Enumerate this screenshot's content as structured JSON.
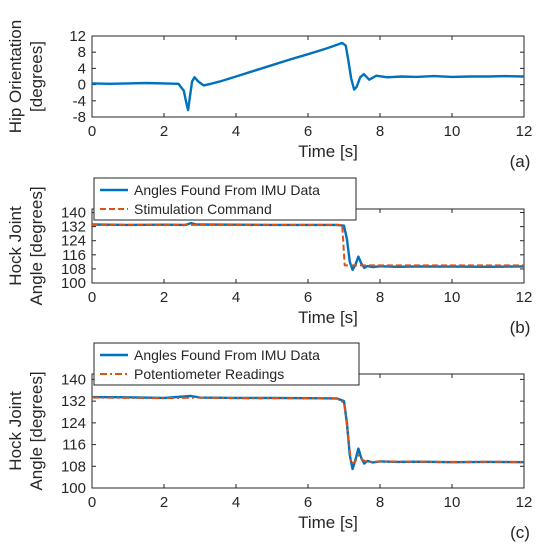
{
  "chart_data": [
    {
      "type": "line",
      "panel_label": "(a)",
      "xlabel": "Time [s]",
      "ylabel": [
        "Hip Orientation",
        "[degrees]"
      ],
      "xlim": [
        0,
        12
      ],
      "ylim": [
        -8,
        12
      ],
      "xticks": [
        0,
        2,
        4,
        6,
        8,
        10,
        12
      ],
      "yticks": [
        -8,
        -4,
        0,
        4,
        8,
        12
      ],
      "ytick_labels": [
        "-8",
        "-4",
        "0",
        "4",
        "8",
        "12"
      ],
      "legend": null,
      "grid": false,
      "series": [
        {
          "color": "#0072BD",
          "style": "solid",
          "x": [
            0,
            0.5,
            1.0,
            1.5,
            2.0,
            2.4,
            2.55,
            2.62,
            2.67,
            2.72,
            2.78,
            2.85,
            2.95,
            3.1,
            3.3,
            3.6,
            4.0,
            4.5,
            5.0,
            5.5,
            6.0,
            6.5,
            6.8,
            6.95,
            7.05,
            7.12,
            7.2,
            7.28,
            7.35,
            7.45,
            7.55,
            7.7,
            7.9,
            8.2,
            8.6,
            9.0,
            9.5,
            10.0,
            10.5,
            11.0,
            11.5,
            12.0
          ],
          "y": [
            0.3,
            0.2,
            0.3,
            0.4,
            0.3,
            0.2,
            -1.5,
            -4.5,
            -6.3,
            -3.0,
            0.8,
            1.8,
            0.8,
            -0.2,
            0.2,
            0.9,
            2.0,
            3.4,
            4.8,
            6.2,
            7.5,
            8.9,
            9.8,
            10.3,
            9.6,
            6.0,
            1.5,
            -1.2,
            -0.6,
            1.8,
            2.6,
            1.2,
            2.2,
            1.8,
            2.0,
            1.9,
            2.1,
            1.9,
            2.0,
            2.0,
            2.1,
            2.0
          ]
        }
      ]
    },
    {
      "type": "line",
      "panel_label": "(b)",
      "xlabel": "Time [s]",
      "ylabel": [
        "Hock Joint",
        "Angle [degrees]"
      ],
      "xlim": [
        0,
        12
      ],
      "ylim": [
        100,
        142
      ],
      "xticks": [
        0,
        2,
        4,
        6,
        8,
        10,
        12
      ],
      "yticks": [
        100,
        108,
        116,
        124,
        132,
        140
      ],
      "ytick_labels": [
        "100",
        "108",
        "116",
        "124",
        "132",
        "140"
      ],
      "legend": "top-left",
      "grid": false,
      "series": [
        {
          "name": "Angles Found From IMU Data",
          "color": "#0072BD",
          "style": "solid",
          "x": [
            0,
            1,
            2,
            2.6,
            2.75,
            2.9,
            4,
            5,
            6,
            6.8,
            7.0,
            7.08,
            7.16,
            7.24,
            7.32,
            7.4,
            7.48,
            7.56,
            7.65,
            7.8,
            8.0,
            8.5,
            9,
            10,
            11,
            12
          ],
          "y": [
            133.2,
            133.0,
            133.1,
            133.0,
            134.0,
            133.2,
            133.1,
            133.0,
            133.0,
            133.0,
            132.5,
            125.0,
            112.0,
            107.5,
            110.5,
            115.0,
            111.0,
            108.6,
            109.6,
            109.0,
            109.5,
            109.2,
            109.4,
            109.3,
            109.2,
            109.4
          ]
        },
        {
          "name": "Stimulation Command",
          "color": "#D95319",
          "style": "dash",
          "x": [
            0,
            6.95,
            7.02,
            12
          ],
          "y": [
            133,
            133,
            110,
            110
          ]
        }
      ]
    },
    {
      "type": "line",
      "panel_label": "(c)",
      "xlabel": "Time [s]",
      "ylabel": [
        "Hock Joint",
        "Angle [degrees]"
      ],
      "xlim": [
        0,
        12
      ],
      "ylim": [
        100,
        142
      ],
      "xticks": [
        0,
        2,
        4,
        6,
        8,
        10,
        12
      ],
      "yticks": [
        100,
        108,
        116,
        124,
        132,
        140
      ],
      "ytick_labels": [
        "100",
        "108",
        "116",
        "124",
        "132",
        "140"
      ],
      "legend": "top-left",
      "grid": false,
      "series": [
        {
          "name": "Angles Found From IMU Data",
          "color": "#0072BD",
          "style": "solid",
          "x": [
            0,
            1,
            2,
            2.75,
            3,
            4,
            5,
            6,
            6.8,
            7.0,
            7.08,
            7.16,
            7.24,
            7.32,
            7.4,
            7.48,
            7.56,
            7.65,
            7.8,
            8.0,
            8.5,
            9,
            10,
            11,
            12
          ],
          "y": [
            133.5,
            133.4,
            133.2,
            133.9,
            133.3,
            133.2,
            133.2,
            133.1,
            133.0,
            132.0,
            124.0,
            112.0,
            107.0,
            110.5,
            114.5,
            111.0,
            109.0,
            110.0,
            109.4,
            109.8,
            109.6,
            109.7,
            109.5,
            109.6,
            109.5
          ]
        },
        {
          "name": "Potentiometer Readings",
          "color": "#D95319",
          "style": "dashdot",
          "x": [
            0,
            1,
            2,
            3,
            4,
            5,
            6,
            6.8,
            7.0,
            7.1,
            7.2,
            7.3,
            7.4,
            7.5,
            7.6,
            7.8,
            8.0,
            9,
            10,
            11,
            12
          ],
          "y": [
            133.3,
            133.2,
            133.1,
            133.3,
            133.1,
            133.1,
            133.0,
            132.9,
            131.5,
            121.0,
            109.0,
            109.5,
            112.0,
            110.5,
            109.8,
            109.6,
            109.8,
            109.7,
            109.6,
            109.7,
            109.6
          ]
        }
      ]
    }
  ]
}
